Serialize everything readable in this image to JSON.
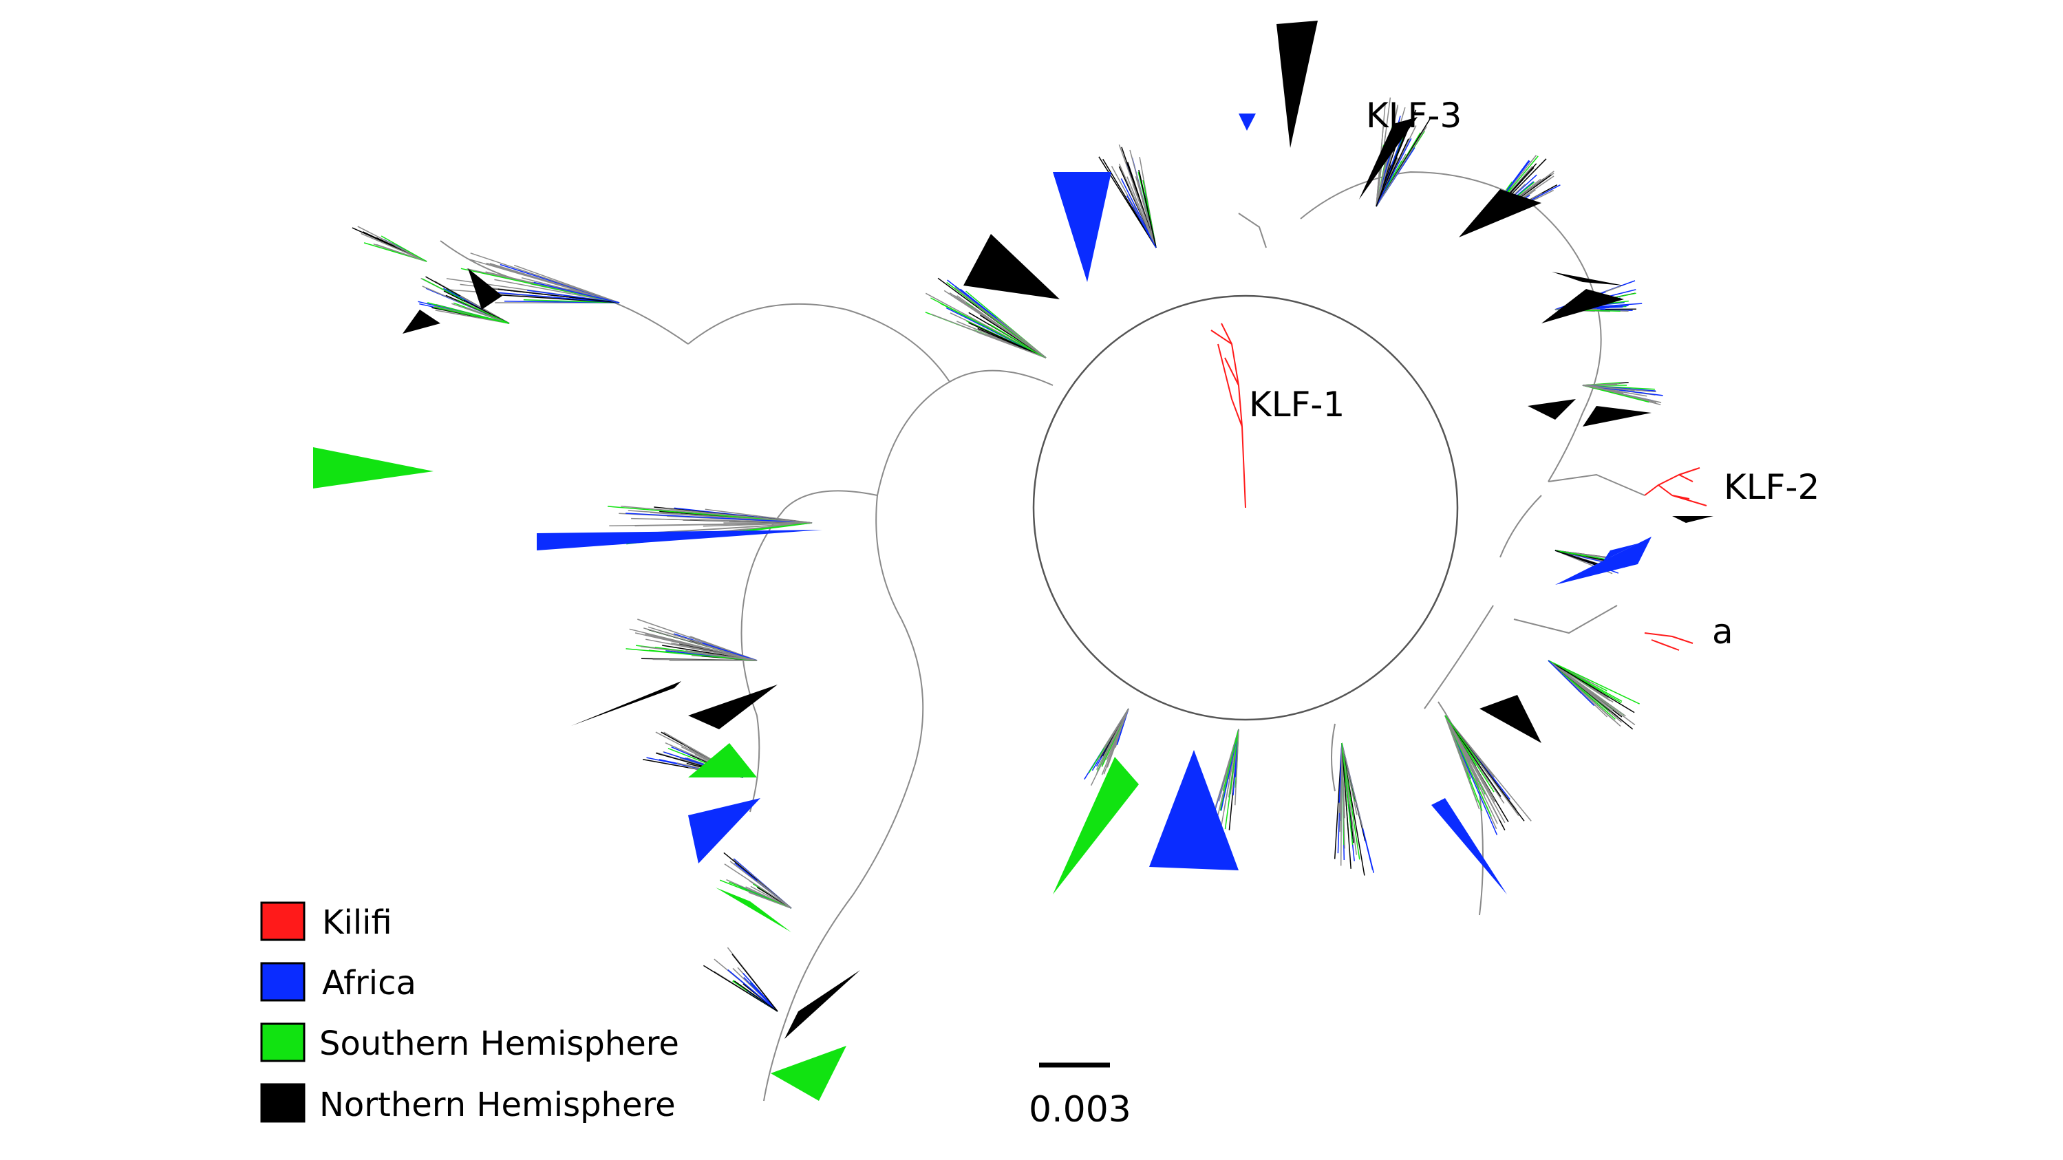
{
  "figure": {
    "clade_labels": {
      "klf1": "KLF-1",
      "klf2": "KLF-2",
      "klf3": "KLF-3",
      "a": "a"
    },
    "scale_bar": {
      "label": "0.003"
    },
    "legend": [
      {
        "label": "Kilifi",
        "color": "#ff1a1a"
      },
      {
        "label": "Africa",
        "color": "#0a2cff"
      },
      {
        "label": "Southern Hemisphere",
        "color": "#11e311"
      },
      {
        "label": "Northern Hemisphere",
        "color": "#000000"
      }
    ],
    "colors": {
      "kilifi": "#ff1a1a",
      "africa": "#0a2cff",
      "southern": "#11e311",
      "northern": "#000000",
      "branch": "#8a8a8a"
    }
  }
}
